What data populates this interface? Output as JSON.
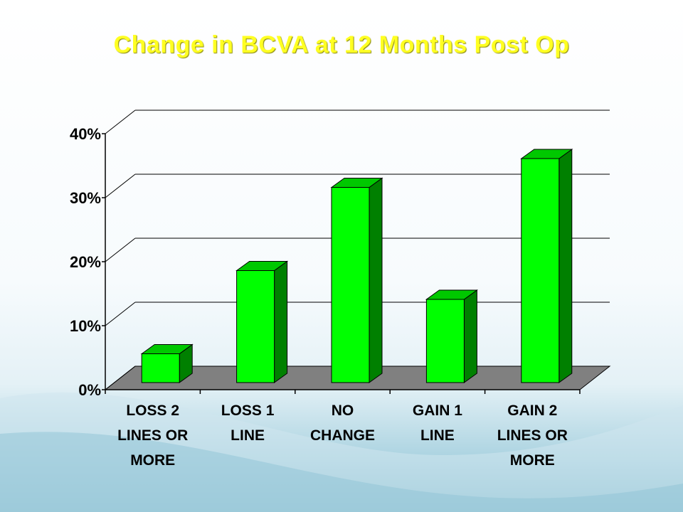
{
  "slide": {
    "title": "Change in BCVA at 12 Months Post Op"
  },
  "colors": {
    "title": "#ffff22",
    "bar_front": "#00ff00",
    "bar_top": "#00c800",
    "bar_side": "#008000",
    "floor": "#808080",
    "gridline": "#000000"
  },
  "chart_data": {
    "type": "bar",
    "title": "Change in BCVA at 12 Months Post Op",
    "style": "3d",
    "categories": [
      [
        "LOSS 2",
        "LINES OR",
        "MORE"
      ],
      [
        "LOSS 1",
        "LINE"
      ],
      [
        "NO",
        "CHANGE"
      ],
      [
        "GAIN 1",
        "LINE"
      ],
      [
        "GAIN 2",
        "LINES OR",
        "MORE"
      ]
    ],
    "values": [
      4.5,
      17.5,
      30.5,
      13,
      35
    ],
    "ylim": [
      0,
      40
    ],
    "yticks": [
      "0%",
      "10%",
      "20%",
      "30%",
      "40%"
    ],
    "ytick_values": [
      0,
      10,
      20,
      30,
      40
    ],
    "xlabel": "",
    "ylabel": "",
    "grid": true,
    "legend": "none"
  }
}
